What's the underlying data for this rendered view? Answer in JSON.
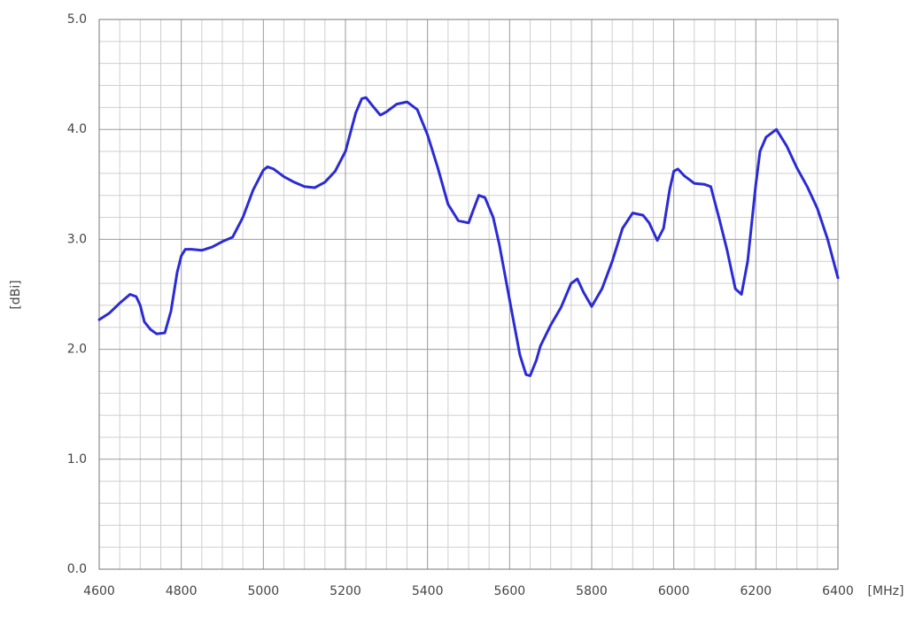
{
  "chart_data": {
    "type": "line",
    "xlabel": "[MHz]",
    "ylabel": "[dBi]",
    "xlim": [
      4600,
      6400
    ],
    "ylim": [
      0,
      5
    ],
    "xticks": [
      4600,
      4800,
      5000,
      5200,
      5400,
      5600,
      5800,
      6000,
      6200,
      6400
    ],
    "yticks": [
      {
        "value": 0,
        "label": "0.0"
      },
      {
        "value": 1,
        "label": "1.0"
      },
      {
        "value": 2,
        "label": "2.0"
      },
      {
        "value": 3,
        "label": "3.0"
      },
      {
        "value": 4,
        "label": "4.0"
      },
      {
        "value": 5,
        "label": "5.0"
      }
    ],
    "xminorticks": [
      4650,
      4700,
      4750,
      4850,
      4900,
      4950,
      5050,
      5100,
      5150,
      5250,
      5300,
      5350,
      5450,
      5500,
      5550,
      5650,
      5700,
      5750,
      5850,
      5900,
      5950,
      6050,
      6100,
      6150,
      6250,
      6300,
      6350
    ],
    "yminorticks": [
      0.2,
      0.4,
      0.6,
      0.8,
      1.2,
      1.4,
      1.6,
      1.8,
      2.2,
      2.4,
      2.6,
      2.8,
      3.2,
      3.4,
      3.6,
      3.8,
      4.2,
      4.4,
      4.6,
      4.8
    ],
    "grid": true,
    "series": [
      {
        "color": "#2b2bd6",
        "x": [
          4600,
          4625,
          4650,
          4675,
          4690,
          4700,
          4710,
          4725,
          4740,
          4760,
          4775,
          4790,
          4800,
          4810,
          4825,
          4850,
          4875,
          4900,
          4925,
          4950,
          4975,
          5000,
          5010,
          5025,
          5050,
          5075,
          5100,
          5125,
          5150,
          5175,
          5200,
          5225,
          5240,
          5250,
          5265,
          5285,
          5300,
          5325,
          5350,
          5375,
          5400,
          5425,
          5450,
          5475,
          5500,
          5510,
          5525,
          5540,
          5560,
          5575,
          5600,
          5625,
          5640,
          5650,
          5665,
          5675,
          5700,
          5725,
          5750,
          5765,
          5780,
          5800,
          5825,
          5850,
          5875,
          5900,
          5925,
          5940,
          5960,
          5975,
          5990,
          6000,
          6010,
          6025,
          6050,
          6075,
          6090,
          6110,
          6130,
          6150,
          6165,
          6180,
          6200,
          6210,
          6225,
          6250,
          6275,
          6300,
          6325,
          6350,
          6375,
          6400
        ],
        "values": [
          2.27,
          2.33,
          2.42,
          2.5,
          2.48,
          2.4,
          2.25,
          2.18,
          2.14,
          2.15,
          2.35,
          2.7,
          2.85,
          2.91,
          2.91,
          2.9,
          2.93,
          2.98,
          3.02,
          3.2,
          3.45,
          3.63,
          3.66,
          3.64,
          3.57,
          3.52,
          3.48,
          3.47,
          3.52,
          3.62,
          3.8,
          4.15,
          4.28,
          4.29,
          4.22,
          4.13,
          4.16,
          4.23,
          4.25,
          4.18,
          3.95,
          3.65,
          3.32,
          3.17,
          3.15,
          3.25,
          3.4,
          3.38,
          3.2,
          2.95,
          2.45,
          1.95,
          1.77,
          1.76,
          1.9,
          2.03,
          2.22,
          2.38,
          2.6,
          2.64,
          2.52,
          2.39,
          2.55,
          2.8,
          3.1,
          3.24,
          3.22,
          3.15,
          2.99,
          3.1,
          3.45,
          3.62,
          3.64,
          3.58,
          3.51,
          3.5,
          3.48,
          3.2,
          2.9,
          2.55,
          2.5,
          2.8,
          3.5,
          3.8,
          3.93,
          4.0,
          3.85,
          3.65,
          3.48,
          3.28,
          3.0,
          2.65
        ]
      }
    ]
  }
}
